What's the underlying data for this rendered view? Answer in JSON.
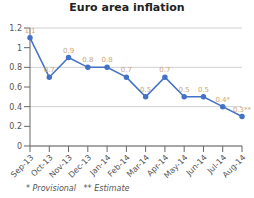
{
  "chart_data": {
    "type": "line",
    "title": "Euro area inflation",
    "categories": [
      "Sep-13",
      "Oct-13",
      "Nov-13",
      "Dec-13",
      "Jan-14",
      "Feb-14",
      "Mar-14",
      "Apr-14",
      "May-14",
      "Jun-14",
      "Jul-14",
      "Aug-14"
    ],
    "values": [
      1.1,
      0.7,
      0.9,
      0.8,
      0.8,
      0.7,
      0.5,
      0.7,
      0.5,
      0.5,
      0.4,
      0.3
    ],
    "value_labels": [
      "1.1",
      "0.7",
      "0.9",
      "0.8",
      "0.8",
      "0.7",
      "0.5",
      "0.7",
      "0.5",
      "0.5",
      "0.4*",
      "0.3**"
    ],
    "data_labels": true,
    "color": "#4472C4",
    "marker": "circle",
    "ylim": [
      0,
      1.2
    ],
    "yticks": [
      0,
      0.2,
      0.4,
      0.6,
      0.8,
      1.0,
      1.2
    ],
    "grid": true,
    "annotations": [
      "* Provisional   ** Estimate"
    ]
  }
}
